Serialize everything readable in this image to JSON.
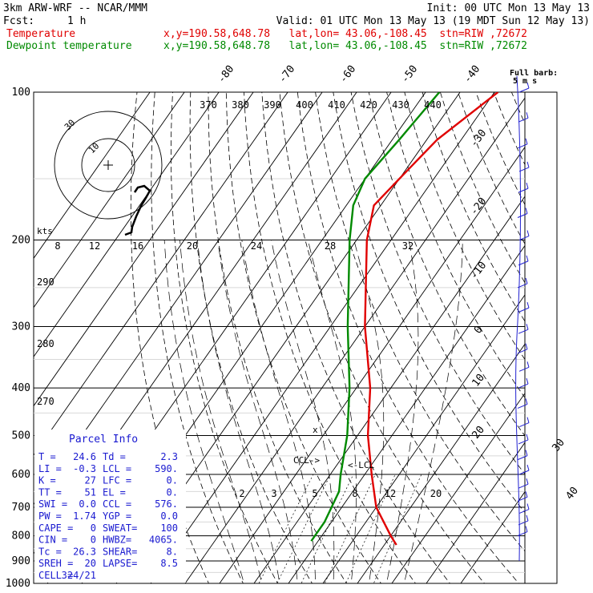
{
  "header": {
    "model": "3km ARW-WRF -- NCAR/MMM",
    "init": "Init: 00 UTC Mon 13 May 13",
    "fcst_label": "Fcst:",
    "fcst_value": "1 h",
    "valid": "Valid: 01 UTC Mon 13 May 13 (19 MDT Sun 12 May 13)",
    "temp_label": "Temperature",
    "temp_loc": "x,y=190.58,648.78   lat,lon= 43.06,-108.45  stn=RIW ,72672",
    "dew_label": "Dewpoint temperature",
    "dew_loc": "x,y=190.58,648.78   lat,lon= 43.06,-108.45  stn=RIW ,72672"
  },
  "colors": {
    "temperature": "#e00000",
    "dewpoint": "#008a00",
    "hodograph": "#000000",
    "wind_barbs": "#2020d0"
  },
  "chart_data": {
    "type": "line",
    "chart_kind": "skew-T log-p sounding",
    "y_axis": {
      "scale": "log",
      "unit": "hPa",
      "range": [
        1000,
        100
      ],
      "ticks": [
        100,
        200,
        300,
        400,
        500,
        600,
        700,
        800,
        900,
        1000
      ]
    },
    "isotherm_labels": [
      -80,
      -70,
      -60,
      -50,
      -40,
      -30,
      -20,
      -10,
      0,
      10,
      20,
      30,
      40
    ],
    "theta_e_labels": [
      370,
      380,
      390,
      400,
      410,
      420,
      430,
      440
    ],
    "theta_labels": [
      290,
      280,
      270
    ],
    "mixing_ratio_labels": [
      2,
      3,
      5,
      8,
      12,
      20
    ],
    "hodograph_speed_labels": [
      8,
      12,
      16,
      20,
      24,
      28,
      32
    ],
    "hodograph": {
      "unit_label": "kts",
      "ring_labels": [
        10,
        30
      ]
    },
    "series": [
      {
        "name": "Temperature",
        "color": "#e00000",
        "points": [
          [
            835,
            23.5
          ],
          [
            800,
            20
          ],
          [
            700,
            10
          ],
          [
            600,
            2
          ],
          [
            500,
            -7
          ],
          [
            400,
            -16
          ],
          [
            300,
            -30
          ],
          [
            200,
            -47
          ],
          [
            170,
            -52
          ],
          [
            150,
            -50
          ],
          [
            125,
            -47
          ],
          [
            100,
            -39
          ]
        ]
      },
      {
        "name": "Dewpoint temperature",
        "color": "#008a00",
        "points": [
          [
            820,
            -2
          ],
          [
            750,
            -2
          ],
          [
            650,
            -4
          ],
          [
            600,
            -7
          ],
          [
            500,
            -13
          ],
          [
            400,
            -22
          ],
          [
            300,
            -35
          ],
          [
            200,
            -52
          ],
          [
            170,
            -58
          ],
          [
            150,
            -60
          ],
          [
            125,
            -58
          ],
          [
            100,
            -56
          ]
        ]
      }
    ],
    "wind_label": "Full barb:",
    "wind_units": "5 m s",
    "wind_barbs_pressure": [
      100,
      115,
      130,
      145,
      160,
      180,
      200,
      225,
      250,
      280,
      310,
      340,
      370,
      400,
      440,
      480,
      520,
      560,
      600,
      640,
      680,
      720,
      760,
      800
    ],
    "parcel_markers": [
      "CCL->",
      "<-LCL"
    ],
    "parcel_info": {
      "title": "Parcel Info",
      "rows": [
        [
          "T  =",
          "24.6",
          "Td =",
          "2.3"
        ],
        [
          "LI =",
          "-0.3",
          "LCL =",
          "590."
        ],
        [
          "K  =",
          "27",
          "LFC =",
          "0."
        ],
        [
          "TT =",
          "51",
          "EL  =",
          "0."
        ],
        [
          "SWI =",
          "0.0",
          "CCL =",
          "576."
        ],
        [
          "PW =",
          "1.74",
          "YGP =",
          "0.0"
        ],
        [
          "CAPE =",
          "0",
          "SWEAT=",
          "100"
        ],
        [
          "CIN =",
          "0",
          "HWBZ=",
          "4065."
        ],
        [
          "Tc =",
          "26.3",
          "SHEAR=",
          "8."
        ],
        [
          "SREH =",
          "20",
          "LAPSE=",
          "8.5"
        ],
        [
          "CELL =",
          "324/21",
          "",
          ""
        ]
      ]
    }
  }
}
